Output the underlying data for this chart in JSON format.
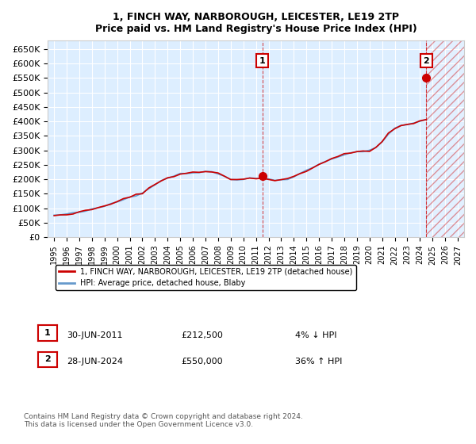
{
  "title": "1, FINCH WAY, NARBOROUGH, LEICESTER, LE19 2TP",
  "subtitle": "Price paid vs. HM Land Registry's House Price Index (HPI)",
  "xlabel": "",
  "ylabel": "",
  "ylim": [
    0,
    680000
  ],
  "yticks": [
    0,
    50000,
    100000,
    150000,
    200000,
    250000,
    300000,
    350000,
    400000,
    450000,
    500000,
    550000,
    600000,
    650000
  ],
  "ytick_labels": [
    "£0",
    "£50K",
    "£100K",
    "£150K",
    "£200K",
    "£250K",
    "£300K",
    "£350K",
    "£400K",
    "£450K",
    "£500K",
    "£550K",
    "£600K",
    "£650K"
  ],
  "xlim": [
    1994.5,
    2027.5
  ],
  "xticks": [
    1995,
    1996,
    1997,
    1998,
    1999,
    2000,
    2001,
    2002,
    2003,
    2004,
    2005,
    2006,
    2007,
    2008,
    2009,
    2010,
    2011,
    2012,
    2013,
    2014,
    2015,
    2016,
    2017,
    2018,
    2019,
    2020,
    2021,
    2022,
    2023,
    2024,
    2025,
    2026,
    2027
  ],
  "hpi_color": "#6699cc",
  "price_color": "#cc0000",
  "sale1_x": 2011.5,
  "sale1_y": 212500,
  "sale1_label": "1",
  "sale2_x": 2024.5,
  "sale2_y": 550000,
  "sale2_label": "2",
  "legend_line1": "1, FINCH WAY, NARBOROUGH, LEICESTER, LE19 2TP (detached house)",
  "legend_line2": "HPI: Average price, detached house, Blaby",
  "annotation1_date": "30-JUN-2011",
  "annotation1_price": "£212,500",
  "annotation1_hpi": "4% ↓ HPI",
  "annotation2_date": "28-JUN-2024",
  "annotation2_price": "£550,000",
  "annotation2_hpi": "36% ↑ HPI",
  "footer": "Contains HM Land Registry data © Crown copyright and database right 2024.\nThis data is licensed under the Open Government Licence v3.0.",
  "bg_color": "#ddeeff",
  "hatch_color": "#cc0000",
  "hatch_region_start": 2024.5,
  "hatch_region_end": 2027.5
}
